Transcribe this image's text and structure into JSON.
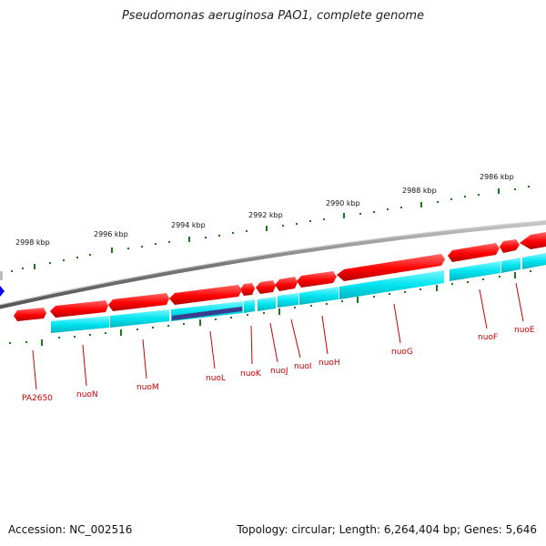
{
  "title": "Pseudomonas aeruginosa PAO1, complete genome",
  "footer": {
    "accession": "Accession: NC_002516",
    "summary": "Topology: circular; Length: 6,264,404 bp; Genes: 5,646"
  },
  "colors": {
    "gene_forward": "#ff0000",
    "cds": "#00e5f0",
    "cds_selected": "#3b3b8f",
    "backbone": "#7a7a7a",
    "label": "#cc0000",
    "tick": "#1a7a1a",
    "locator": "#0000ff"
  },
  "scale_ticks": [
    {
      "label": "2998 kbp",
      "kbp": 2998
    },
    {
      "label": "2996 kbp",
      "kbp": 2996
    },
    {
      "label": "2994 kbp",
      "kbp": 2994
    },
    {
      "label": "2992 kbp",
      "kbp": 2992
    },
    {
      "label": "2990 kbp",
      "kbp": 2990
    },
    {
      "label": "2988 kbp",
      "kbp": 2988
    },
    {
      "label": "2986 kbp",
      "kbp": 2986
    }
  ],
  "gene_labels": [
    {
      "name": "PA2650"
    },
    {
      "name": "nuoN"
    },
    {
      "name": "nuoM"
    },
    {
      "name": "nuoL"
    },
    {
      "name": "nuoK"
    },
    {
      "name": "nuoJ"
    },
    {
      "name": "nuoI"
    },
    {
      "name": "nuoH"
    },
    {
      "name": "nuoG"
    },
    {
      "name": "nuoF"
    },
    {
      "name": "nuoE"
    }
  ]
}
